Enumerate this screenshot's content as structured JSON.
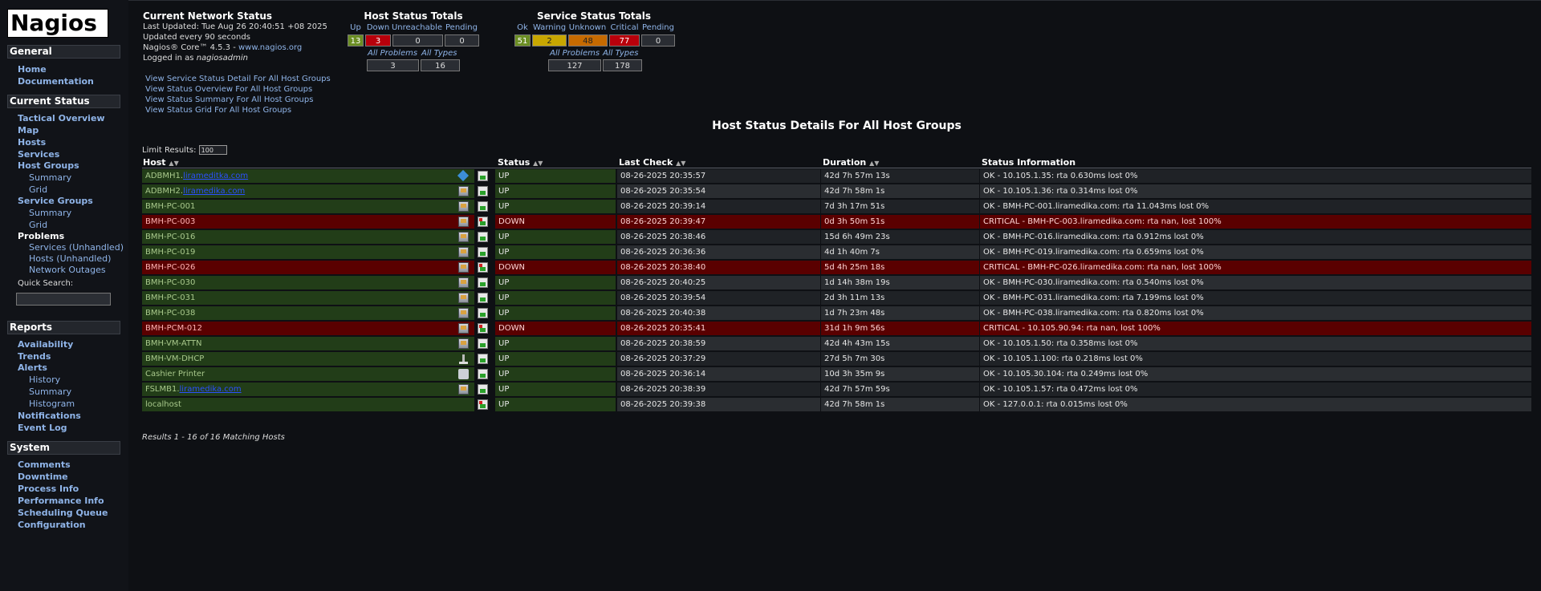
{
  "app": {
    "logo_text": "Nagios"
  },
  "sidebar": {
    "general": {
      "title": "General",
      "items": [
        "Home",
        "Documentation"
      ]
    },
    "current_status": {
      "title": "Current Status",
      "tactical": "Tactical Overview",
      "map": "Map",
      "hosts": "Hosts",
      "services": "Services",
      "host_groups": "Host Groups",
      "hg_summary": "Summary",
      "hg_grid": "Grid",
      "service_groups": "Service Groups",
      "sg_summary": "Summary",
      "sg_grid": "Grid",
      "problems": "Problems",
      "prob_services": "Services",
      "prob_hosts": "Hosts",
      "unhandled": "Unhandled",
      "network_outages": "Network Outages",
      "quick_search": "Quick Search:"
    },
    "reports": {
      "title": "Reports",
      "availability": "Availability",
      "trends": "Trends",
      "alerts": "Alerts",
      "history": "History",
      "summary": "Summary",
      "histogram": "Histogram",
      "notifications": "Notifications",
      "event_log": "Event Log"
    },
    "system": {
      "title": "System",
      "items": [
        "Comments",
        "Downtime",
        "Process Info",
        "Performance Info",
        "Scheduling Queue",
        "Configuration"
      ]
    }
  },
  "status_info": {
    "title": "Current Network Status",
    "last_updated": "Last Updated: Tue Aug 26 20:40:51 +08 2025",
    "updated_every": "Updated every 90 seconds",
    "core_prefix": "Nagios® Core™ 4.5.3 - ",
    "core_link": "www.nagios.org",
    "logged_in_prefix": "Logged in as ",
    "logged_in_user": "nagiosadmin"
  },
  "links": [
    "View Service Status Detail For All Host Groups",
    "View Status Overview For All Host Groups",
    "View Status Summary For All Host Groups",
    "View Status Grid For All Host Groups"
  ],
  "host_totals": {
    "title": "Host Status Totals",
    "labels": [
      "Up",
      "Down",
      "Unreachable",
      "Pending"
    ],
    "values": [
      "13",
      "3",
      "0",
      "0"
    ],
    "problems_label": "All Problems",
    "types_label": "All Types",
    "problems": "3",
    "types": "16"
  },
  "service_totals": {
    "title": "Service Status Totals",
    "labels": [
      "Ok",
      "Warning",
      "Unknown",
      "Critical",
      "Pending"
    ],
    "values": [
      "51",
      "2",
      "48",
      "77",
      "0"
    ],
    "problems_label": "All Problems",
    "types_label": "All Types",
    "problems": "127",
    "types": "178"
  },
  "colors": {
    "ok_row": "#223d18",
    "down_row": "#5a0000",
    "up_cell": "#6b8e23",
    "down_cell": "#b8000b",
    "warning_cell": "#c8a700",
    "unknown_cell": "#c66a00",
    "critical_cell": "#b8000b"
  },
  "main": {
    "title": "Host Status Details For All Host Groups",
    "limit_label": "Limit Results:",
    "limit_value": "100",
    "headers": {
      "host": "Host",
      "status": "Status",
      "last_check": "Last Check",
      "duration": "Duration",
      "info": "Status Information"
    },
    "rows": [
      {
        "host": "ADBMH1.",
        "host_redacted": "lirameditka.com",
        "icon": "diamond-icon",
        "status": "UP",
        "last_check": "08-26-2025 20:35:57",
        "duration": "42d 7h 57m 13s",
        "info": "OK - 10.105.1.35: rta 0.630ms lost 0%"
      },
      {
        "host": "ADBMH2.",
        "host_redacted": "liramedika.com",
        "icon": "windows-host-icon",
        "status": "UP",
        "last_check": "08-26-2025 20:35:54",
        "duration": "42d 7h 58m 1s",
        "info": "OK - 10.105.1.36: rta 0.314ms lost 0%"
      },
      {
        "host": "BMH-PC-001",
        "host_redacted": "",
        "icon": "windows-host-icon",
        "status": "UP",
        "last_check": "08-26-2025 20:39:14",
        "duration": "7d 3h 17m 51s",
        "info": "OK - BMH-PC-001.liramedika.com: rta 11.043ms lost 0%"
      },
      {
        "host": "BMH-PC-003",
        "host_redacted": "",
        "icon": "windows-host-icon",
        "status": "DOWN",
        "last_check": "08-26-2025 20:39:47",
        "duration": "0d 3h 50m 51s",
        "info": "CRITICAL - BMH-PC-003.liramedika.com: rta nan, lost 100%"
      },
      {
        "host": "BMH-PC-016",
        "host_redacted": "",
        "icon": "windows-host-icon",
        "status": "UP",
        "last_check": "08-26-2025 20:38:46",
        "duration": "15d 6h 49m 23s",
        "info": "OK - BMH-PC-016.liramedika.com: rta 0.912ms lost 0%"
      },
      {
        "host": "BMH-PC-019",
        "host_redacted": "",
        "icon": "windows-host-icon",
        "status": "UP",
        "last_check": "08-26-2025 20:36:36",
        "duration": "4d 1h 40m 7s",
        "info": "OK - BMH-PC-019.liramedika.com: rta 0.659ms lost 0%"
      },
      {
        "host": "BMH-PC-026",
        "host_redacted": "",
        "icon": "windows-host-icon",
        "status": "DOWN",
        "last_check": "08-26-2025 20:38:40",
        "duration": "5d 4h 25m 18s",
        "info": "CRITICAL - BMH-PC-026.liramedika.com: rta nan, lost 100%"
      },
      {
        "host": "BMH-PC-030",
        "host_redacted": "",
        "icon": "windows-host-icon",
        "status": "UP",
        "last_check": "08-26-2025 20:40:25",
        "duration": "1d 14h 38m 19s",
        "info": "OK - BMH-PC-030.liramedika.com: rta 0.540ms lost 0%"
      },
      {
        "host": "BMH-PC-031",
        "host_redacted": "",
        "icon": "windows-host-icon",
        "status": "UP",
        "last_check": "08-26-2025 20:39:54",
        "duration": "2d 3h 11m 13s",
        "info": "OK - BMH-PC-031.liramedika.com: rta 7.199ms lost 0%"
      },
      {
        "host": "BMH-PC-038",
        "host_redacted": "",
        "icon": "windows-host-icon",
        "status": "UP",
        "last_check": "08-26-2025 20:40:38",
        "duration": "1d 7h 23m 48s",
        "info": "OK - BMH-PC-038.liramedika.com: rta 0.820ms lost 0%"
      },
      {
        "host": "BMH-PCM-012",
        "host_redacted": "",
        "icon": "windows-host-icon",
        "status": "DOWN",
        "last_check": "08-26-2025 20:35:41",
        "duration": "31d 1h 9m 56s",
        "info": "CRITICAL - 10.105.90.94: rta nan, lost 100%"
      },
      {
        "host": "BMH-VM-ATTN",
        "host_redacted": "",
        "icon": "windows-host-icon",
        "status": "UP",
        "last_check": "08-26-2025 20:38:59",
        "duration": "42d 4h 43m 15s",
        "info": "OK - 10.105.1.50: rta 0.358ms lost 0%"
      },
      {
        "host": "BMH-VM-DHCP",
        "host_redacted": "",
        "icon": "network-icon",
        "status": "UP",
        "last_check": "08-26-2025 20:37:29",
        "duration": "27d 5h 7m 30s",
        "info": "OK - 10.105.1.100: rta 0.218ms lost 0%"
      },
      {
        "host": "Cashier Printer",
        "host_redacted": "",
        "icon": "printer-icon",
        "status": "UP",
        "last_check": "08-26-2025 20:36:14",
        "duration": "10d 3h 35m 9s",
        "info": "OK - 10.105.30.104: rta 0.249ms lost 0%"
      },
      {
        "host": "FSLMB1.",
        "host_redacted": "liramedika.com",
        "icon": "windows-host-icon",
        "status": "UP",
        "last_check": "08-26-2025 20:38:39",
        "duration": "42d 7h 57m 59s",
        "info": "OK - 10.105.1.57: rta 0.472ms lost 0%"
      },
      {
        "host": "localhost",
        "host_redacted": "",
        "icon": "none",
        "status": "UP",
        "last_check": "08-26-2025 20:39:38",
        "duration": "42d 7h 58m 1s",
        "info": "OK - 127.0.0.1: rta 0.015ms lost 0%"
      }
    ],
    "results": "Results 1 - 16 of 16 Matching Hosts"
  }
}
